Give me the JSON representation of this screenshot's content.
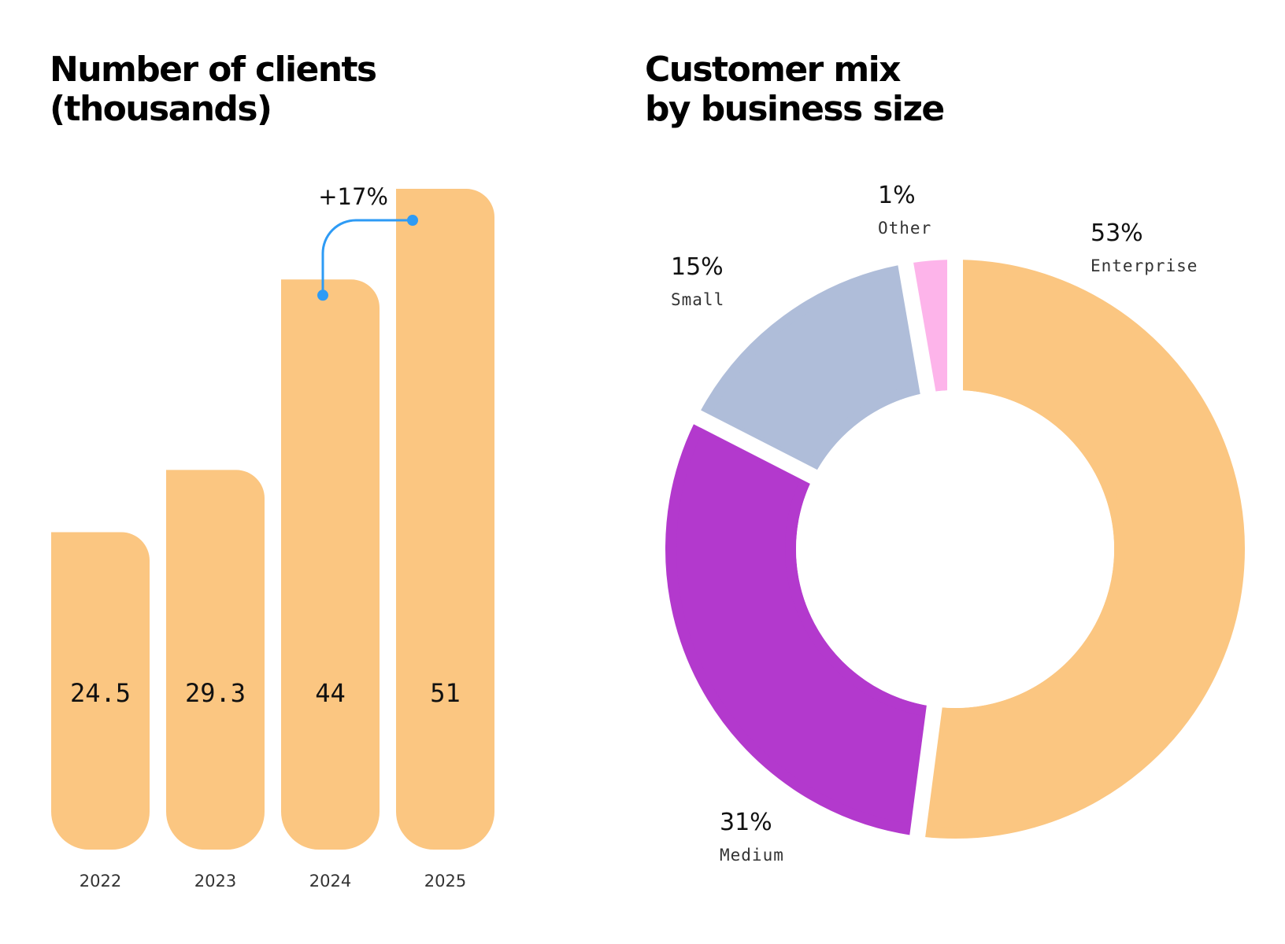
{
  "chart_data": [
    {
      "type": "bar",
      "title": [
        "Number of clients",
        "(thousands)"
      ],
      "xlabel": "",
      "ylabel": "",
      "categories": [
        "2022",
        "2023",
        "2024",
        "2025"
      ],
      "values": [
        24.5,
        29.3,
        44,
        51
      ],
      "value_labels": [
        "24.5",
        "29.3",
        "44",
        "51"
      ],
      "ylim": [
        0,
        51
      ],
      "grid": false,
      "bar_color": "#FBC681",
      "annotation": {
        "text": "+17%",
        "from": "2024",
        "to": "2025",
        "color": "#2E9BF5"
      }
    },
    {
      "type": "pie",
      "subtype": "donut",
      "title": [
        "Customer mix",
        "by business size"
      ],
      "slices": [
        {
          "label": "Enterprise",
          "value": 53,
          "display": "53%",
          "color": "#FBC681"
        },
        {
          "label": "Medium",
          "value": 31,
          "display": "31%",
          "color": "#B339CD"
        },
        {
          "label": "Small",
          "value": 15,
          "display": "15%",
          "color": "#AFBDD9"
        },
        {
          "label": "Other",
          "value": 1,
          "display": "1%",
          "color": "#FDB4EA"
        }
      ]
    }
  ]
}
